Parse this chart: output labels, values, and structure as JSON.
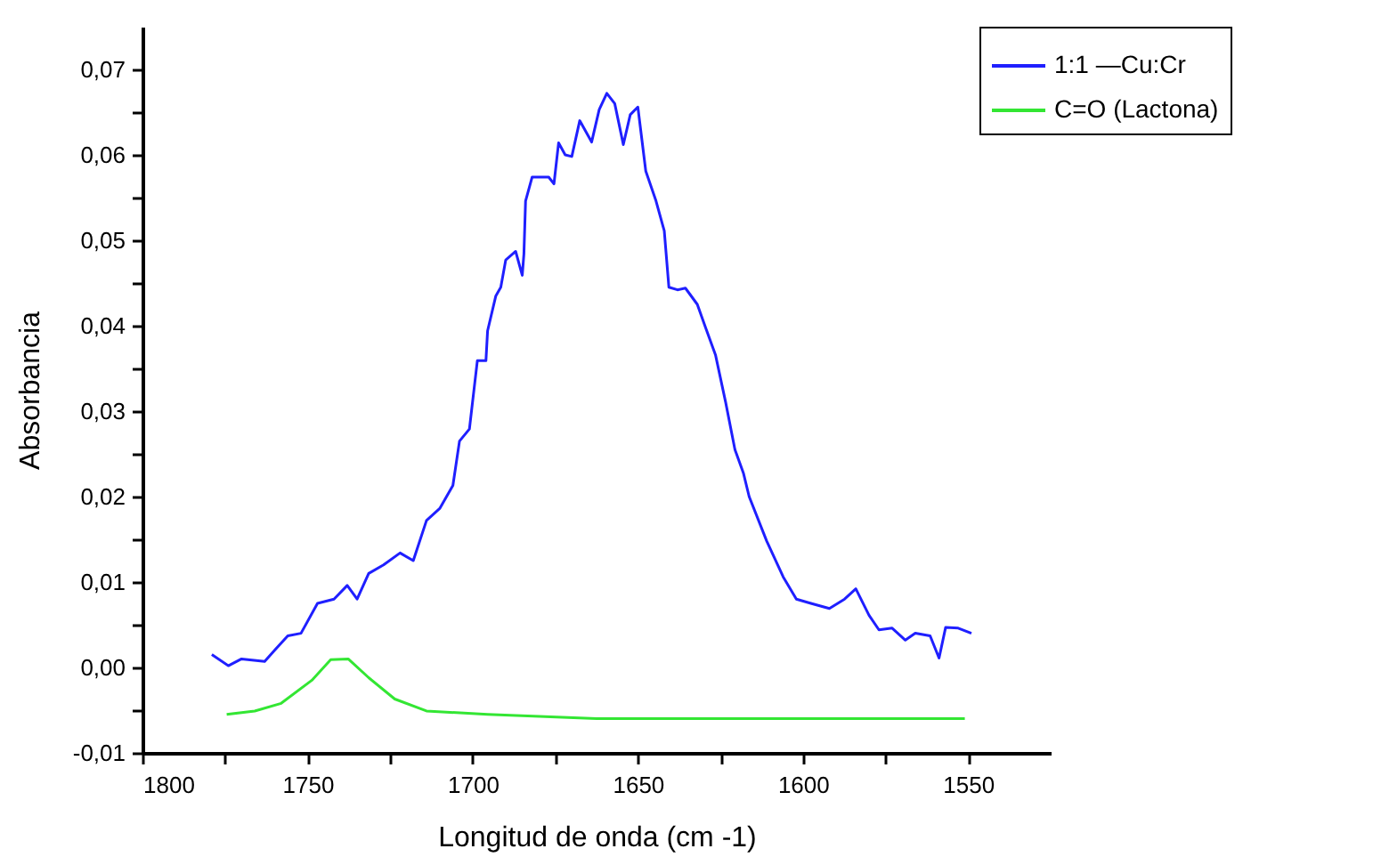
{
  "chart_data": {
    "type": "line",
    "xlabel": "Longitud de onda (cm -1)",
    "ylabel": "Absorbancia",
    "xlim": [
      1800,
      1525
    ],
    "ylim": [
      -0.01,
      0.075
    ],
    "xticks": [
      1800,
      {
        "value": 1775,
        "label": null
      },
      1750,
      {
        "value": 1725,
        "label": null
      },
      1700,
      {
        "value": 1675,
        "label": null
      },
      1650,
      {
        "value": 1625,
        "label": null
      },
      1600,
      {
        "value": 1575,
        "label": null
      },
      1550
    ],
    "yticks": [
      {
        "value": -0.01,
        "label": "-0,01"
      },
      {
        "value": -0.005,
        "label": null
      },
      {
        "value": 0,
        "label": "0,00"
      },
      {
        "value": 0.005,
        "label": null
      },
      {
        "value": 0.01,
        "label": "0,01"
      },
      {
        "value": 0.015,
        "label": null
      },
      {
        "value": 0.02,
        "label": "0,02"
      },
      {
        "value": 0.025,
        "label": null
      },
      {
        "value": 0.03,
        "label": "0,03"
      },
      {
        "value": 0.035,
        "label": null
      },
      {
        "value": 0.04,
        "label": "0,04"
      },
      {
        "value": 0.045,
        "label": null
      },
      {
        "value": 0.05,
        "label": "0,05"
      },
      {
        "value": 0.055,
        "label": null
      },
      {
        "value": 0.06,
        "label": "0,06"
      },
      {
        "value": 0.065,
        "label": null
      },
      {
        "value": 0.07,
        "label": "0,07"
      }
    ],
    "grid": false,
    "legend": "right",
    "series": [
      {
        "name": "1:1 —Cu:Cr",
        "color": "#1f1fff",
        "x": [
          1779,
          1774,
          1770,
          1763,
          1760,
          1756,
          1752,
          1747,
          1742,
          1738,
          1735,
          1731.5,
          1727,
          1722,
          1718,
          1714,
          1710,
          1706,
          1704,
          1701,
          1698.6,
          1696,
          1695.5,
          1693,
          1691.5,
          1690,
          1687,
          1685,
          1684.5,
          1684,
          1682,
          1677,
          1675.4,
          1674,
          1672,
          1670,
          1667.6,
          1664,
          1661.7,
          1659.4,
          1657,
          1654.4,
          1652.3,
          1650,
          1647.6,
          1644.5,
          1642,
          1640.6,
          1638,
          1635.6,
          1632,
          1629.7,
          1626.5,
          1623.4,
          1620.6,
          1618,
          1616.3,
          1611,
          1606,
          1602,
          1597.6,
          1592,
          1587.4,
          1584,
          1580,
          1577,
          1573,
          1569,
          1566,
          1561.5,
          1558.8,
          1556.8,
          1553,
          1549
        ],
        "values": [
          0.0015,
          0.0002,
          0.001,
          0.0007,
          0.002,
          0.0037,
          0.004,
          0.0075,
          0.008,
          0.0096,
          0.008,
          0.011,
          0.012,
          0.0134,
          0.0125,
          0.0172,
          0.0186,
          0.0213,
          0.0265,
          0.0279,
          0.0359,
          0.0359,
          0.0394,
          0.0435,
          0.0445,
          0.0477,
          0.0487,
          0.0459,
          0.0484,
          0.0546,
          0.0574,
          0.0574,
          0.0566,
          0.0614,
          0.06,
          0.0598,
          0.064,
          0.0615,
          0.0653,
          0.0672,
          0.066,
          0.0612,
          0.0647,
          0.0656,
          0.0581,
          0.0546,
          0.0511,
          0.0445,
          0.0442,
          0.0444,
          0.0425,
          0.04,
          0.0366,
          0.031,
          0.0255,
          0.0227,
          0.02,
          0.0148,
          0.0106,
          0.008,
          0.0075,
          0.0069,
          0.008,
          0.0092,
          0.0061,
          0.0044,
          0.0046,
          0.0032,
          0.004,
          0.0037,
          0.0011,
          0.0047,
          0.0046,
          0.004
        ]
      },
      {
        "name": "C=O (Lactona)",
        "color": "#33e633",
        "x": [
          1774.5,
          1766,
          1758,
          1748.7,
          1743,
          1737.7,
          1731.5,
          1723.6,
          1714,
          1695.5,
          1662.5,
          1551
        ],
        "values": [
          -0.0055,
          -0.0051,
          -0.0042,
          -0.0015,
          0.0009,
          0.001,
          -0.0012,
          -0.0037,
          -0.0051,
          -0.0055,
          -0.006,
          -0.006
        ]
      }
    ]
  }
}
